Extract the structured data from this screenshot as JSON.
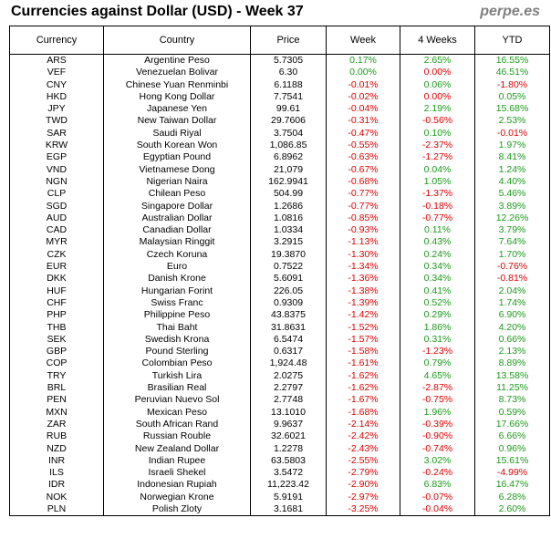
{
  "header": {
    "title": "Currencies against Dollar (USD) - Week 37",
    "brand": "perpe.es"
  },
  "columns": [
    "Currency",
    "Country",
    "Price",
    "Week",
    "4 Weeks",
    "YTD"
  ],
  "rows": [
    {
      "code": "ARS",
      "country": "Argentine Peso",
      "price": "5.7305",
      "week": "0.17%",
      "w4": "2.65%",
      "ytd": "16.55%"
    },
    {
      "code": "VEF",
      "country": "Venezuelan Bolivar",
      "price": "6.30",
      "week": "0.00%",
      "w4": "0.00%",
      "ytd": "46.51%"
    },
    {
      "code": "CNY",
      "country": "Chinese Yuan Renminbi",
      "price": "6.1188",
      "week": "-0.01%",
      "w4": "0.06%",
      "ytd": "-1.80%"
    },
    {
      "code": "HKD",
      "country": "Hong Kong Dollar",
      "price": "7.7541",
      "week": "-0.02%",
      "w4": "0.00%",
      "ytd": "0.05%"
    },
    {
      "code": "JPY",
      "country": "Japanese Yen",
      "price": "99.61",
      "week": "-0.04%",
      "w4": "2.19%",
      "ytd": "15.68%"
    },
    {
      "code": "TWD",
      "country": "New Taiwan Dollar",
      "price": "29.7606",
      "week": "-0.31%",
      "w4": "-0.56%",
      "ytd": "2.53%"
    },
    {
      "code": "SAR",
      "country": "Saudi Riyal",
      "price": "3.7504",
      "week": "-0.47%",
      "w4": "0.10%",
      "ytd": "-0.01%"
    },
    {
      "code": "KRW",
      "country": "South Korean Won",
      "price": "1,086.85",
      "week": "-0.55%",
      "w4": "-2.37%",
      "ytd": "1.97%"
    },
    {
      "code": "EGP",
      "country": "Egyptian Pound",
      "price": "6.8962",
      "week": "-0.63%",
      "w4": "-1.27%",
      "ytd": "8.41%"
    },
    {
      "code": "VND",
      "country": "Vietnamese Dong",
      "price": "21,079",
      "week": "-0.67%",
      "w4": "0.04%",
      "ytd": "1.24%"
    },
    {
      "code": "NGN",
      "country": "Nigerian Naira",
      "price": "162.9941",
      "week": "-0.68%",
      "w4": "1.05%",
      "ytd": "4.40%"
    },
    {
      "code": "CLP",
      "country": "Chilean Peso",
      "price": "504.99",
      "week": "-0.77%",
      "w4": "-1.37%",
      "ytd": "5.46%"
    },
    {
      "code": "SGD",
      "country": "Singapore Dollar",
      "price": "1.2686",
      "week": "-0.77%",
      "w4": "-0.18%",
      "ytd": "3.89%"
    },
    {
      "code": "AUD",
      "country": "Australian Dollar",
      "price": "1.0816",
      "week": "-0.85%",
      "w4": "-0.77%",
      "ytd": "12.26%"
    },
    {
      "code": "CAD",
      "country": "Canadian Dollar",
      "price": "1.0334",
      "week": "-0.93%",
      "w4": "0.11%",
      "ytd": "3.79%"
    },
    {
      "code": "MYR",
      "country": "Malaysian Ringgit",
      "price": "3.2915",
      "week": "-1.13%",
      "w4": "0.43%",
      "ytd": "7.64%"
    },
    {
      "code": "CZK",
      "country": "Czech Koruna",
      "price": "19.3870",
      "week": "-1.30%",
      "w4": "0.24%",
      "ytd": "1.70%"
    },
    {
      "code": "EUR",
      "country": "Euro",
      "price": "0.7522",
      "week": "-1.34%",
      "w4": "0.34%",
      "ytd": "-0.76%"
    },
    {
      "code": "DKK",
      "country": "Danish Krone",
      "price": "5.6091",
      "week": "-1.36%",
      "w4": "0.34%",
      "ytd": "-0.81%"
    },
    {
      "code": "HUF",
      "country": "Hungarian Forint",
      "price": "226.05",
      "week": "-1.38%",
      "w4": "0.41%",
      "ytd": "2.04%"
    },
    {
      "code": "CHF",
      "country": "Swiss Franc",
      "price": "0.9309",
      "week": "-1.39%",
      "w4": "0.52%",
      "ytd": "1.74%"
    },
    {
      "code": "PHP",
      "country": "Philippine Peso",
      "price": "43.8375",
      "week": "-1.42%",
      "w4": "0.29%",
      "ytd": "6.90%"
    },
    {
      "code": "THB",
      "country": "Thai Baht",
      "price": "31.8631",
      "week": "-1.52%",
      "w4": "1.86%",
      "ytd": "4.20%"
    },
    {
      "code": "SEK",
      "country": "Swedish Krona",
      "price": "6.5474",
      "week": "-1.57%",
      "w4": "0.31%",
      "ytd": "0.66%"
    },
    {
      "code": "GBP",
      "country": "Pound Sterling",
      "price": "0.6317",
      "week": "-1.58%",
      "w4": "-1.23%",
      "ytd": "2.13%"
    },
    {
      "code": "COP",
      "country": "Colombian Peso",
      "price": "1,924.48",
      "week": "-1.61%",
      "w4": "0.79%",
      "ytd": "8.89%"
    },
    {
      "code": "TRY",
      "country": "Turkish Lira",
      "price": "2.0275",
      "week": "-1.62%",
      "w4": "4.65%",
      "ytd": "13.58%"
    },
    {
      "code": "BRL",
      "country": "Brasilian Real",
      "price": "2.2797",
      "week": "-1.62%",
      "w4": "-2.87%",
      "ytd": "11.25%"
    },
    {
      "code": "PEN",
      "country": "Peruvian Nuevo Sol",
      "price": "2.7748",
      "week": "-1.67%",
      "w4": "-0.75%",
      "ytd": "8.73%"
    },
    {
      "code": "MXN",
      "country": "Mexican Peso",
      "price": "13.1010",
      "week": "-1.68%",
      "w4": "1.96%",
      "ytd": "0.59%"
    },
    {
      "code": "ZAR",
      "country": "South African Rand",
      "price": "9.9637",
      "week": "-2.14%",
      "w4": "-0.39%",
      "ytd": "17.66%"
    },
    {
      "code": "RUB",
      "country": "Russian Rouble",
      "price": "32.6021",
      "week": "-2.42%",
      "w4": "-0.90%",
      "ytd": "6.66%"
    },
    {
      "code": "NZD",
      "country": "New Zealand Dollar",
      "price": "1.2278",
      "week": "-2.43%",
      "w4": "-0.74%",
      "ytd": "0.96%"
    },
    {
      "code": "INR",
      "country": "Indian Rupee",
      "price": "63.5803",
      "week": "-2.55%",
      "w4": "3.02%",
      "ytd": "15.61%"
    },
    {
      "code": "ILS",
      "country": "Israeli Shekel",
      "price": "3.5472",
      "week": "-2.79%",
      "w4": "-0.24%",
      "ytd": "-4.99%"
    },
    {
      "code": "IDR",
      "country": "Indonesian Rupiah",
      "price": "11,223.42",
      "week": "-2.90%",
      "w4": "6.83%",
      "ytd": "16.47%"
    },
    {
      "code": "NOK",
      "country": "Norwegian Krone",
      "price": "5.9191",
      "week": "-2.97%",
      "w4": "-0.07%",
      "ytd": "6.28%"
    },
    {
      "code": "PLN",
      "country": "Polish Zloty",
      "price": "3.1681",
      "week": "-3.25%",
      "w4": "-0.04%",
      "ytd": "2.60%"
    }
  ],
  "colors": {
    "positive": "#1a9a1a",
    "negative": "#e00000",
    "brand": "#808080"
  }
}
